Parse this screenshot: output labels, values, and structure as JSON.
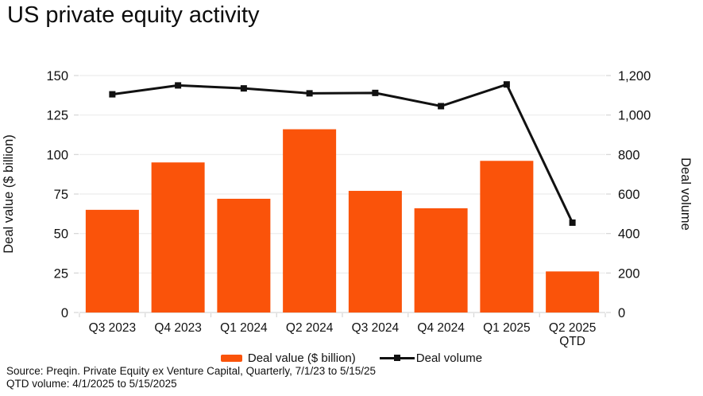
{
  "title": "US private equity activity",
  "chart_data": {
    "type": "bar",
    "subtype": "bar+line dual axis",
    "categories": [
      [
        "Q3 2023"
      ],
      [
        "Q4 2023"
      ],
      [
        "Q1 2024"
      ],
      [
        "Q2 2024"
      ],
      [
        "Q3 2024"
      ],
      [
        "Q4 2024"
      ],
      [
        "Q1 2025"
      ],
      [
        "Q2 2025",
        "QTD"
      ]
    ],
    "series": [
      {
        "name": "Deal value ($ billion)",
        "type": "bar",
        "axis": "left",
        "color": "#FA530A",
        "values": [
          65,
          95,
          72,
          116,
          77,
          66,
          96,
          26
        ]
      },
      {
        "name": "Deal volume",
        "type": "line",
        "axis": "right",
        "color": "#111111",
        "values": [
          1105,
          1150,
          1135,
          1110,
          1112,
          1045,
          1155,
          455
        ]
      }
    ],
    "left_axis": {
      "label": "Deal value ($ billion)",
      "min": 0,
      "max": 150,
      "step": 25,
      "ticks": [
        "0",
        "25",
        "50",
        "75",
        "100",
        "125",
        "150"
      ]
    },
    "right_axis": {
      "label": "Deal volume",
      "min": 0,
      "max": 1200,
      "step": 200,
      "ticks": [
        "0",
        "200",
        "400",
        "600",
        "800",
        "1,000",
        "1,200"
      ]
    },
    "grid": true,
    "legend_position": "bottom"
  },
  "source": {
    "line1": "Source: Preqin. Private Equity ex Venture Capital, Quarterly, 7/1/23 to 5/15/25",
    "line2": "QTD volume: 4/1/2025 to 5/15/2025"
  },
  "colors": {
    "bar": "#FA530A",
    "line": "#111111",
    "grid": "#ececec",
    "axis": "#d6d6d6",
    "text": "#111111"
  }
}
